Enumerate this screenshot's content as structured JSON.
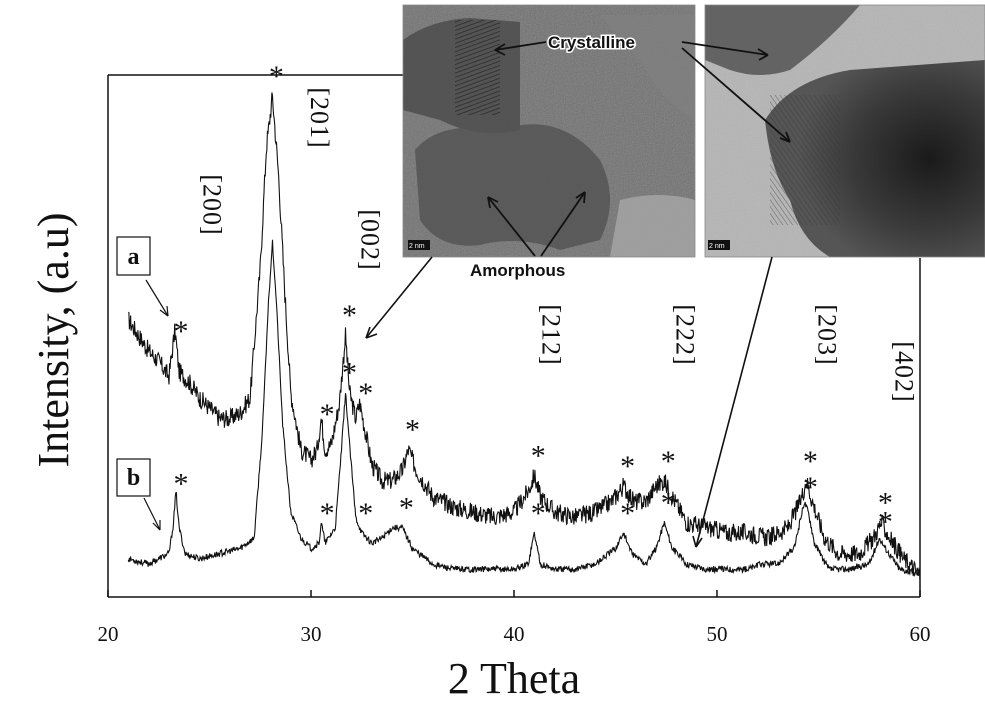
{
  "chart_data": {
    "type": "line",
    "xlabel": "2 Theta",
    "ylabel": "Intensity, (a.u)",
    "xlim": [
      20,
      60
    ],
    "x_ticks": [
      "20",
      "30",
      "40",
      "50",
      "60"
    ],
    "series": [
      {
        "name": "a",
        "points": [
          [
            21.0,
            0.52
          ],
          [
            21.5,
            0.49
          ],
          [
            22.0,
            0.46
          ],
          [
            22.5,
            0.44
          ],
          [
            23.0,
            0.41
          ],
          [
            23.3,
            0.5
          ],
          [
            23.5,
            0.42
          ],
          [
            24.0,
            0.4
          ],
          [
            24.5,
            0.37
          ],
          [
            25.0,
            0.35
          ],
          [
            25.5,
            0.33
          ],
          [
            26.0,
            0.33
          ],
          [
            26.5,
            0.34
          ],
          [
            27.0,
            0.37
          ],
          [
            27.5,
            0.62
          ],
          [
            27.8,
            0.85
          ],
          [
            28.1,
            0.95
          ],
          [
            28.4,
            0.8
          ],
          [
            28.7,
            0.58
          ],
          [
            29.0,
            0.38
          ],
          [
            29.5,
            0.27
          ],
          [
            30.0,
            0.25
          ],
          [
            30.3,
            0.27
          ],
          [
            30.5,
            0.33
          ],
          [
            30.7,
            0.27
          ],
          [
            31.0,
            0.28
          ],
          [
            31.4,
            0.36
          ],
          [
            31.7,
            0.49
          ],
          [
            31.9,
            0.38
          ],
          [
            32.2,
            0.33
          ],
          [
            32.4,
            0.36
          ],
          [
            32.7,
            0.3
          ],
          [
            33.0,
            0.24
          ],
          [
            33.5,
            0.21
          ],
          [
            34.0,
            0.21
          ],
          [
            34.5,
            0.23
          ],
          [
            34.8,
            0.27
          ],
          [
            35.2,
            0.23
          ],
          [
            36.0,
            0.18
          ],
          [
            37.0,
            0.16
          ],
          [
            38.0,
            0.15
          ],
          [
            39.0,
            0.14
          ],
          [
            40.0,
            0.15
          ],
          [
            40.7,
            0.19
          ],
          [
            41.0,
            0.22
          ],
          [
            41.3,
            0.18
          ],
          [
            42.0,
            0.15
          ],
          [
            43.0,
            0.14
          ],
          [
            44.0,
            0.15
          ],
          [
            44.8,
            0.17
          ],
          [
            45.4,
            0.2
          ],
          [
            45.9,
            0.17
          ],
          [
            46.5,
            0.17
          ],
          [
            47.0,
            0.2
          ],
          [
            47.4,
            0.21
          ],
          [
            47.8,
            0.18
          ],
          [
            48.5,
            0.13
          ],
          [
            49.5,
            0.12
          ],
          [
            50.5,
            0.11
          ],
          [
            51.5,
            0.11
          ],
          [
            52.5,
            0.1
          ],
          [
            53.5,
            0.12
          ],
          [
            54.1,
            0.17
          ],
          [
            54.4,
            0.21
          ],
          [
            54.7,
            0.17
          ],
          [
            55.3,
            0.1
          ],
          [
            56.0,
            0.07
          ],
          [
            57.0,
            0.07
          ],
          [
            57.7,
            0.1
          ],
          [
            58.1,
            0.13
          ],
          [
            58.5,
            0.1
          ],
          [
            59.2,
            0.06
          ],
          [
            60.0,
            0.03
          ]
        ]
      },
      {
        "name": "b",
        "points": [
          [
            21.0,
            0.06
          ],
          [
            22.0,
            0.05
          ],
          [
            23.0,
            0.07
          ],
          [
            23.2,
            0.12
          ],
          [
            23.35,
            0.19
          ],
          [
            23.5,
            0.12
          ],
          [
            23.8,
            0.07
          ],
          [
            24.5,
            0.06
          ],
          [
            25.5,
            0.07
          ],
          [
            26.5,
            0.08
          ],
          [
            27.2,
            0.1
          ],
          [
            27.6,
            0.3
          ],
          [
            27.9,
            0.55
          ],
          [
            28.1,
            0.67
          ],
          [
            28.3,
            0.55
          ],
          [
            28.6,
            0.32
          ],
          [
            29.0,
            0.15
          ],
          [
            29.5,
            0.1
          ],
          [
            30.0,
            0.08
          ],
          [
            30.4,
            0.09
          ],
          [
            30.5,
            0.13
          ],
          [
            30.7,
            0.09
          ],
          [
            31.2,
            0.12
          ],
          [
            31.5,
            0.27
          ],
          [
            31.7,
            0.38
          ],
          [
            31.9,
            0.28
          ],
          [
            32.2,
            0.14
          ],
          [
            32.5,
            0.11
          ],
          [
            33.0,
            0.09
          ],
          [
            33.5,
            0.1
          ],
          [
            34.0,
            0.12
          ],
          [
            34.5,
            0.12
          ],
          [
            35.0,
            0.08
          ],
          [
            36.0,
            0.05
          ],
          [
            37.0,
            0.04
          ],
          [
            38.0,
            0.04
          ],
          [
            39.0,
            0.04
          ],
          [
            40.0,
            0.04
          ],
          [
            40.7,
            0.05
          ],
          [
            41.0,
            0.11
          ],
          [
            41.3,
            0.05
          ],
          [
            42.0,
            0.04
          ],
          [
            43.0,
            0.04
          ],
          [
            44.0,
            0.05
          ],
          [
            45.0,
            0.08
          ],
          [
            45.4,
            0.11
          ],
          [
            45.8,
            0.07
          ],
          [
            46.5,
            0.05
          ],
          [
            47.0,
            0.08
          ],
          [
            47.4,
            0.13
          ],
          [
            47.8,
            0.08
          ],
          [
            48.5,
            0.05
          ],
          [
            49.5,
            0.04
          ],
          [
            50.5,
            0.04
          ],
          [
            51.5,
            0.04
          ],
          [
            52.2,
            0.05
          ],
          [
            53.0,
            0.05
          ],
          [
            53.8,
            0.08
          ],
          [
            54.3,
            0.17
          ],
          [
            54.5,
            0.15
          ],
          [
            54.8,
            0.09
          ],
          [
            55.5,
            0.04
          ],
          [
            56.5,
            0.04
          ],
          [
            57.5,
            0.05
          ],
          [
            58.0,
            0.1
          ],
          [
            58.3,
            0.08
          ],
          [
            59.0,
            0.04
          ],
          [
            60.0,
            0.03
          ]
        ]
      }
    ],
    "peak_markers": [
      {
        "series": "a",
        "x": 23.4
      },
      {
        "series": "a",
        "x": 28.1
      },
      {
        "series": "a",
        "x": 30.6
      },
      {
        "series": "a",
        "x": 31.7
      },
      {
        "series": "a",
        "x": 32.5
      },
      {
        "series": "a",
        "x": 34.8
      },
      {
        "series": "a",
        "x": 41.0
      },
      {
        "series": "a",
        "x": 45.4
      },
      {
        "series": "a",
        "x": 47.4
      },
      {
        "series": "a",
        "x": 54.4
      },
      {
        "series": "a",
        "x": 58.1
      },
      {
        "series": "b",
        "x": 23.4
      },
      {
        "series": "b",
        "x": 30.6
      },
      {
        "series": "b",
        "x": 31.7
      },
      {
        "series": "b",
        "x": 32.5
      },
      {
        "series": "b",
        "x": 34.5
      },
      {
        "series": "b",
        "x": 41.0
      },
      {
        "series": "b",
        "x": 45.4
      },
      {
        "series": "b",
        "x": 47.4
      },
      {
        "series": "b",
        "x": 54.4
      },
      {
        "series": "b",
        "x": 58.1
      }
    ],
    "peak_marker_symbol": "*",
    "miller_indices": [
      {
        "label": "[200]",
        "x": 24.3
      },
      {
        "label": "[201]",
        "x": 29.6
      },
      {
        "label": "[002]",
        "x": 32.1
      },
      {
        "label": "[212]",
        "x": 41.0
      },
      {
        "label": "[222]",
        "x": 47.6
      },
      {
        "label": "[203]",
        "x": 54.6
      },
      {
        "label": "[402]",
        "x": 58.4
      }
    ],
    "series_labels": [
      "a",
      "b"
    ],
    "insets": {
      "crystalline_label": "Crystalline",
      "amorphous_label": "Amorphous",
      "scale_bar": "2 nm"
    },
    "grid": false,
    "line_color": "#111111"
  }
}
